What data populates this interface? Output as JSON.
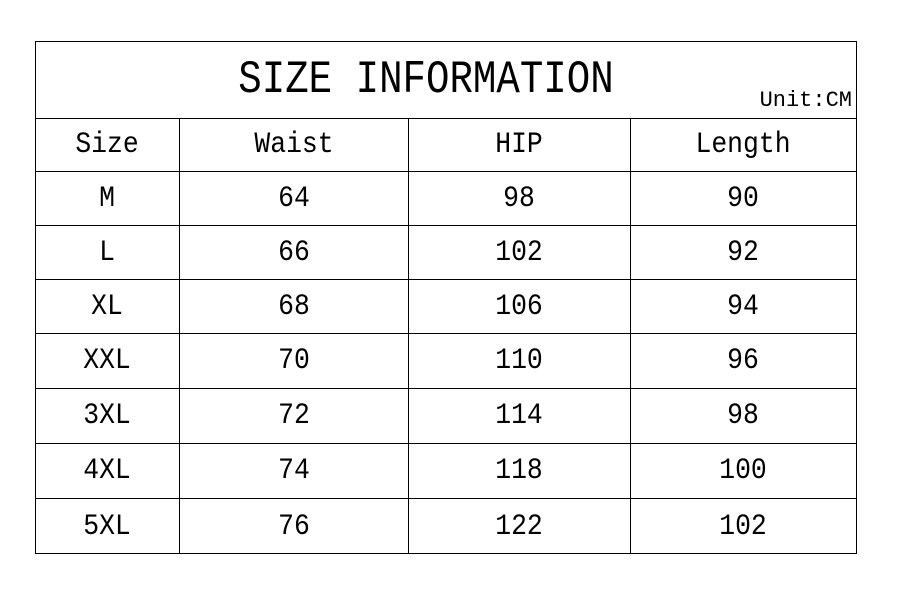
{
  "title": "SIZE INFORMATION",
  "unit": "Unit:CM",
  "headers": [
    "Size",
    "Waist",
    "HIP",
    "Length"
  ],
  "rows": [
    [
      "M",
      "64",
      "98",
      "90"
    ],
    [
      "L",
      "66",
      "102",
      "92"
    ],
    [
      "XL",
      "68",
      "106",
      "94"
    ],
    [
      "XXL",
      "70",
      "110",
      "96"
    ],
    [
      "3XL",
      "72",
      "114",
      "98"
    ],
    [
      "4XL",
      "74",
      "118",
      "100"
    ],
    [
      "5XL",
      "76",
      "122",
      "102"
    ]
  ]
}
